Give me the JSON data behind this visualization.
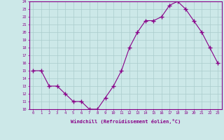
{
  "hours": [
    0,
    1,
    2,
    3,
    4,
    5,
    6,
    7,
    8,
    9,
    10,
    11,
    12,
    13,
    14,
    15,
    16,
    17,
    18,
    19,
    20,
    21,
    22,
    23
  ],
  "values": [
    15,
    15,
    13,
    13,
    12,
    11,
    11,
    10,
    10,
    11.5,
    13,
    15,
    18,
    20,
    21.5,
    21.5,
    22,
    23.5,
    24,
    23,
    21.5,
    20,
    18,
    16
  ],
  "ylim": [
    10,
    24
  ],
  "yticks": [
    10,
    11,
    12,
    13,
    14,
    15,
    16,
    17,
    18,
    19,
    20,
    21,
    22,
    23,
    24
  ],
  "xticks": [
    0,
    1,
    2,
    3,
    4,
    5,
    6,
    7,
    8,
    9,
    10,
    11,
    12,
    13,
    14,
    15,
    16,
    17,
    18,
    19,
    20,
    21,
    22,
    23
  ],
  "xlabel": "Windchill (Refroidissement éolien,°C)",
  "line_color": "#880088",
  "marker_color": "#880088",
  "bg_color": "#cce8e8",
  "grid_color": "#aacccc",
  "axis_color": "#880088",
  "tick_color": "#880088",
  "label_color": "#880088"
}
